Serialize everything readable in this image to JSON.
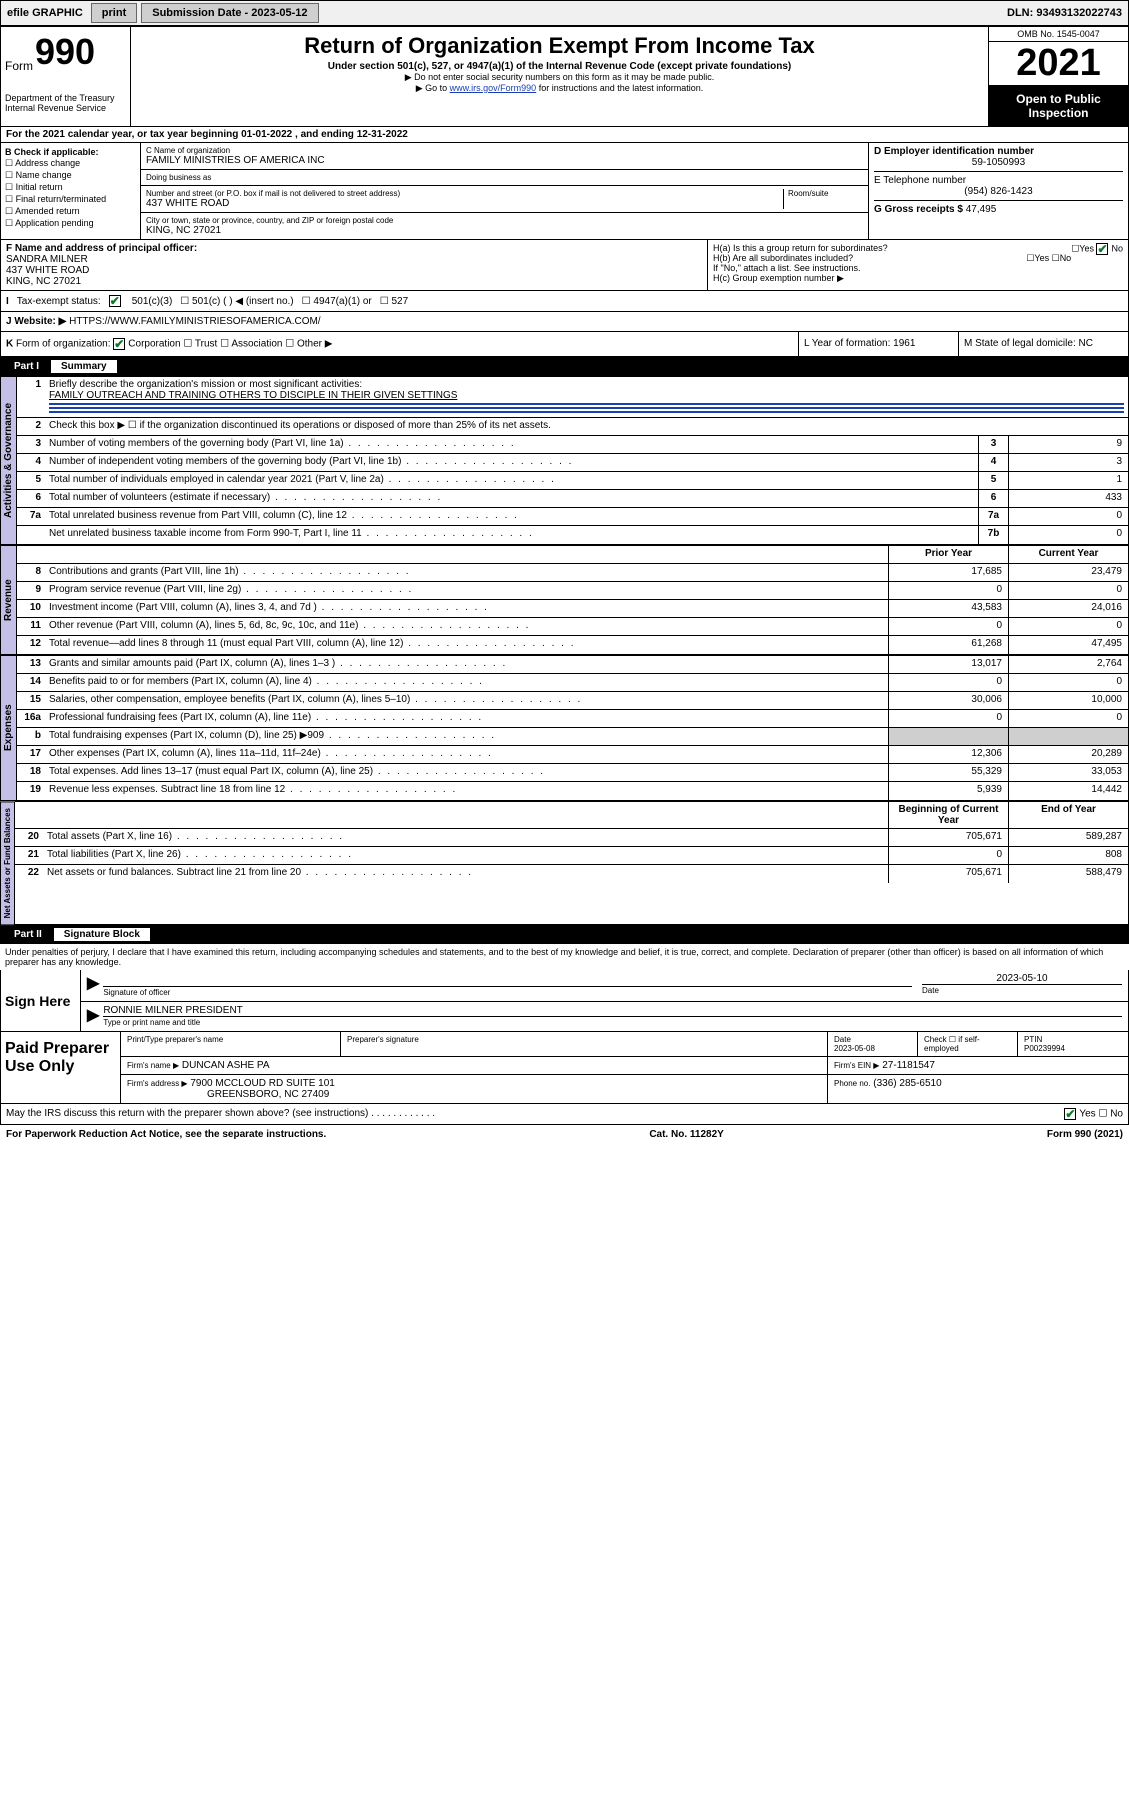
{
  "topbar": {
    "efile": "efile GRAPHIC",
    "print": "print",
    "sub_label": "Submission Date - 2023-05-12",
    "dln": "DLN: 93493132022743"
  },
  "header": {
    "form_prefix": "Form",
    "form_num": "990",
    "dept": "Department of the Treasury Internal Revenue Service",
    "title": "Return of Organization Exempt From Income Tax",
    "sub1": "Under section 501(c), 527, or 4947(a)(1) of the Internal Revenue Code (except private foundations)",
    "sub2": "▶ Do not enter social security numbers on this form as it may be made public.",
    "sub3_pre": "▶ Go to ",
    "sub3_link": "www.irs.gov/Form990",
    "sub3_post": " for instructions and the latest information.",
    "omb": "OMB No. 1545-0047",
    "year": "2021",
    "open": "Open to Public Inspection"
  },
  "line_a": "For the 2021 calendar year, or tax year beginning 01-01-2022  , and ending 12-31-2022",
  "section_b": {
    "b_label": "B Check if applicable:",
    "checks": [
      "Address change",
      "Name change",
      "Initial return",
      "Final return/terminated",
      "Amended return",
      "Application pending"
    ],
    "c_label": "C Name of organization",
    "org_name": "FAMILY MINISTRIES OF AMERICA INC",
    "dba": "Doing business as",
    "street_label": "Number and street (or P.O. box if mail is not delivered to street address)",
    "room_label": "Room/suite",
    "street": "437 WHITE ROAD",
    "city_label": "City or town, state or province, country, and ZIP or foreign postal code",
    "city": "KING, NC  27021",
    "d_label": "D Employer identification number",
    "ein": "59-1050993",
    "e_label": "E Telephone number",
    "phone": "(954) 826-1423",
    "g_label": "G Gross receipts $",
    "gross": "47,495"
  },
  "section_f": {
    "f_label": "F Name and address of principal officer:",
    "officer": "SANDRA MILNER",
    "addr1": "437 WHITE ROAD",
    "addr2": "KING, NC  27021",
    "ha": "H(a) Is this a group return for subordinates?",
    "hb": "H(b) Are all subordinates included?",
    "hc_note": "If \"No,\" attach a list. See instructions.",
    "hc": "H(c) Group exemption number ▶",
    "yes": "Yes",
    "no": "No"
  },
  "tax_status": {
    "i_label": "I",
    "label": "Tax-exempt status:",
    "opt1": "501(c)(3)",
    "opt2": "501(c) (  ) ◀ (insert no.)",
    "opt3": "4947(a)(1) or",
    "opt4": "527"
  },
  "website": {
    "j": "J",
    "label": "Website: ▶",
    "url": "HTTPS://WWW.FAMILYMINISTRIESOFAMERICA.COM/"
  },
  "k_row": {
    "k": "K",
    "label": "Form of organization:",
    "corp": "Corporation",
    "trust": "Trust",
    "assoc": "Association",
    "other": "Other ▶",
    "l_label": "L Year of formation:",
    "l_val": "1961",
    "m_label": "M State of legal domicile:",
    "m_val": "NC"
  },
  "part1": {
    "num": "Part I",
    "title": "Summary",
    "line1_label": "Briefly describe the organization's mission or most significant activities:",
    "line1_val": "FAMILY OUTREACH AND TRAINING OTHERS TO DISCIPLE IN THEIR GIVEN SETTINGS",
    "line2": "Check this box ▶ ☐  if the organization discontinued its operations or disposed of more than 25% of its net assets.",
    "vtab_gov": "Activities & Governance",
    "vtab_rev": "Revenue",
    "vtab_exp": "Expenses",
    "vtab_net": "Net Assets or Fund Balances",
    "gov_lines": [
      {
        "n": "3",
        "d": "Number of voting members of the governing body (Part VI, line 1a)",
        "box": "3",
        "v": "9"
      },
      {
        "n": "4",
        "d": "Number of independent voting members of the governing body (Part VI, line 1b)",
        "box": "4",
        "v": "3"
      },
      {
        "n": "5",
        "d": "Total number of individuals employed in calendar year 2021 (Part V, line 2a)",
        "box": "5",
        "v": "1"
      },
      {
        "n": "6",
        "d": "Total number of volunteers (estimate if necessary)",
        "box": "6",
        "v": "433"
      },
      {
        "n": "7a",
        "d": "Total unrelated business revenue from Part VIII, column (C), line 12",
        "box": "7a",
        "v": "0"
      },
      {
        "n": "",
        "d": "Net unrelated business taxable income from Form 990-T, Part I, line 11",
        "box": "7b",
        "v": "0"
      }
    ],
    "col_prior": "Prior Year",
    "col_curr": "Current Year",
    "col_boy": "Beginning of Current Year",
    "col_eoy": "End of Year",
    "rev_lines": [
      {
        "n": "8",
        "d": "Contributions and grants (Part VIII, line 1h)",
        "p": "17,685",
        "c": "23,479"
      },
      {
        "n": "9",
        "d": "Program service revenue (Part VIII, line 2g)",
        "p": "0",
        "c": "0"
      },
      {
        "n": "10",
        "d": "Investment income (Part VIII, column (A), lines 3, 4, and 7d )",
        "p": "43,583",
        "c": "24,016"
      },
      {
        "n": "11",
        "d": "Other revenue (Part VIII, column (A), lines 5, 6d, 8c, 9c, 10c, and 11e)",
        "p": "0",
        "c": "0"
      },
      {
        "n": "12",
        "d": "Total revenue—add lines 8 through 11 (must equal Part VIII, column (A), line 12)",
        "p": "61,268",
        "c": "47,495"
      }
    ],
    "exp_lines": [
      {
        "n": "13",
        "d": "Grants and similar amounts paid (Part IX, column (A), lines 1–3 )",
        "p": "13,017",
        "c": "2,764"
      },
      {
        "n": "14",
        "d": "Benefits paid to or for members (Part IX, column (A), line 4)",
        "p": "0",
        "c": "0"
      },
      {
        "n": "15",
        "d": "Salaries, other compensation, employee benefits (Part IX, column (A), lines 5–10)",
        "p": "30,006",
        "c": "10,000"
      },
      {
        "n": "16a",
        "d": "Professional fundraising fees (Part IX, column (A), line 11e)",
        "p": "0",
        "c": "0"
      },
      {
        "n": "b",
        "d": "Total fundraising expenses (Part IX, column (D), line 25) ▶909",
        "p": "",
        "c": "",
        "gray": true
      },
      {
        "n": "17",
        "d": "Other expenses (Part IX, column (A), lines 11a–11d, 11f–24e)",
        "p": "12,306",
        "c": "20,289"
      },
      {
        "n": "18",
        "d": "Total expenses. Add lines 13–17 (must equal Part IX, column (A), line 25)",
        "p": "55,329",
        "c": "33,053"
      },
      {
        "n": "19",
        "d": "Revenue less expenses. Subtract line 18 from line 12",
        "p": "5,939",
        "c": "14,442"
      }
    ],
    "net_lines": [
      {
        "n": "20",
        "d": "Total assets (Part X, line 16)",
        "p": "705,671",
        "c": "589,287"
      },
      {
        "n": "21",
        "d": "Total liabilities (Part X, line 26)",
        "p": "0",
        "c": "808"
      },
      {
        "n": "22",
        "d": "Net assets or fund balances. Subtract line 21 from line 20",
        "p": "705,671",
        "c": "588,479"
      }
    ]
  },
  "part2": {
    "num": "Part II",
    "title": "Signature Block",
    "decl": "Under penalties of perjury, I declare that I have examined this return, including accompanying schedules and statements, and to the best of my knowledge and belief, it is true, correct, and complete. Declaration of preparer (other than officer) is based on all information of which preparer has any knowledge."
  },
  "sign": {
    "here": "Sign Here",
    "sig_officer": "Signature of officer",
    "date_lbl": "Date",
    "date_val": "2023-05-10",
    "name": "RONNIE MILNER  PRESIDENT",
    "name_lbl": "Type or print name and title"
  },
  "preparer": {
    "left": "Paid Preparer Use Only",
    "h_name": "Print/Type preparer's name",
    "h_sig": "Preparer's signature",
    "h_date": "Date",
    "date_val": "2023-05-08",
    "check_lbl": "Check ☐ if self-employed",
    "ptin_lbl": "PTIN",
    "ptin": "P00239994",
    "firm_name_lbl": "Firm's name   ▶",
    "firm_name": "DUNCAN ASHE PA",
    "firm_ein_lbl": "Firm's EIN ▶",
    "firm_ein": "27-1181547",
    "firm_addr_lbl": "Firm's address ▶",
    "firm_addr1": "7900 MCCLOUD RD SUITE 101",
    "firm_addr2": "GREENSBORO, NC  27409",
    "phone_lbl": "Phone no.",
    "phone": "(336) 285-6510"
  },
  "discuss": {
    "q": "May the IRS discuss this return with the preparer shown above? (see instructions)",
    "yes": "Yes",
    "no": "No"
  },
  "footer": {
    "pra": "For Paperwork Reduction Act Notice, see the separate instructions.",
    "cat": "Cat. No. 11282Y",
    "form": "Form 990 (2021)"
  },
  "colors": {
    "accent": "#1a3fb0",
    "vtab": "#c4bfe6",
    "check": "#0a7a2a"
  }
}
